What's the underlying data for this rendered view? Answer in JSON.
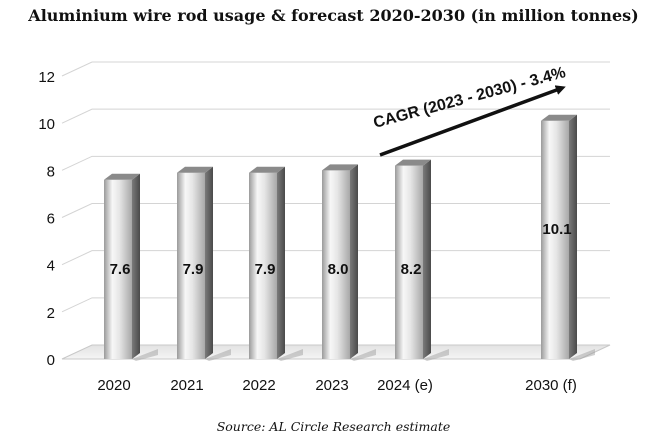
{
  "chart_data": {
    "type": "bar",
    "title": "Aluminium wire rod usage & forecast 2020-2030 (in million tonnes)",
    "categories": [
      "2020",
      "2021",
      "2022",
      "2023",
      "2024 (e)",
      "2030 (f)"
    ],
    "values": [
      7.6,
      7.9,
      7.9,
      8.0,
      8.2,
      10.1
    ],
    "value_labels": [
      "7.6",
      "7.9",
      "7.9",
      "8.0",
      "8.2",
      "10.1"
    ],
    "y_ticks": [
      "0",
      "2",
      "4",
      "6",
      "8",
      "10",
      "12"
    ],
    "ylim": [
      0,
      12
    ],
    "grid": true,
    "annotation": "CAGR (2023 - 2030) - 3.4%",
    "source": "Source: AL Circle Research estimate",
    "colors": {
      "bar_light": "#f4f4f4",
      "bar_mid": "#c9c9c9",
      "bar_dark": "#6e6e6e",
      "grid": "#d4d4d4",
      "text": "#111111"
    }
  }
}
